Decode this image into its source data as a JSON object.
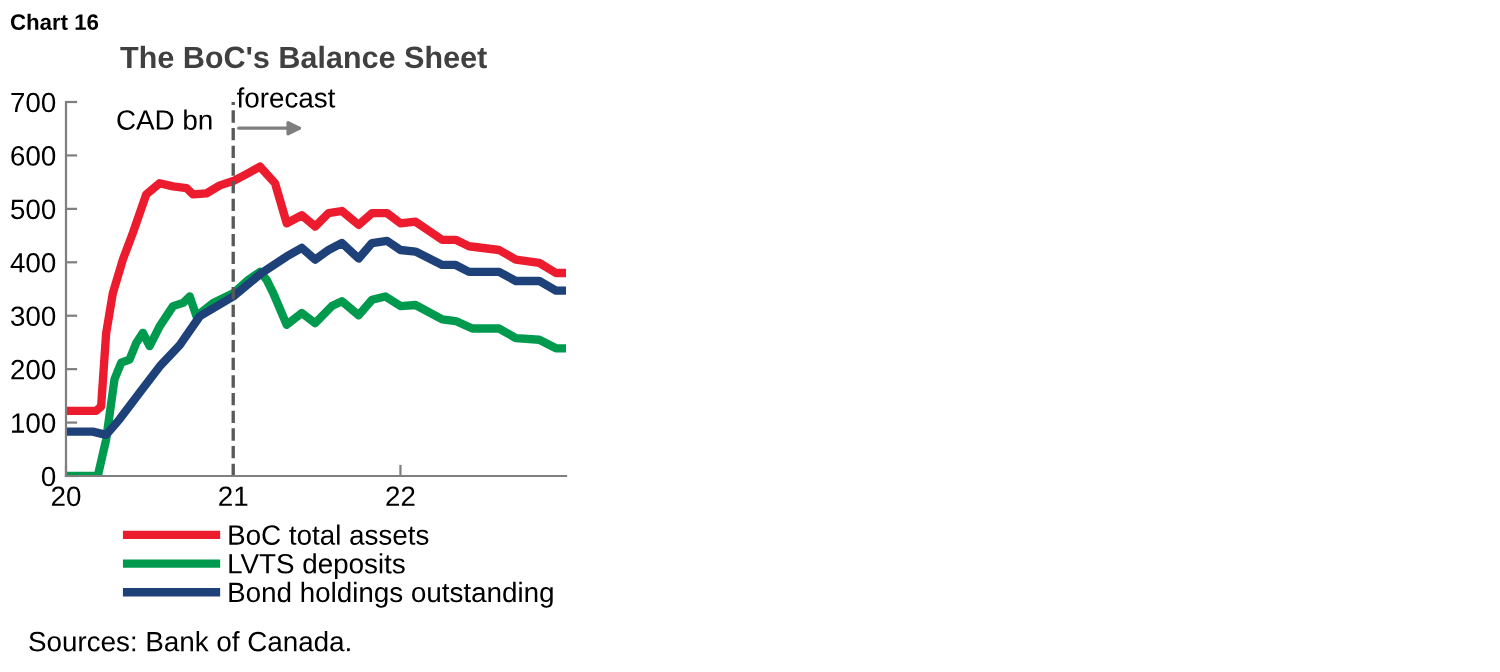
{
  "chart_data": {
    "type": "line",
    "title": "The BoC's Balance Sheet",
    "ylabel": "CAD bn",
    "annotations": [
      "Chart 16",
      "Sources: Bank of Canada."
    ],
    "xlim": [
      2020,
      2022.99
    ],
    "xticks": [
      {
        "value": 2020,
        "label": "20"
      },
      {
        "value": 2021,
        "label": "21"
      },
      {
        "value": 2022,
        "label": "22"
      }
    ],
    "ylim": [
      0,
      700
    ],
    "yticks": [
      0,
      100,
      200,
      300,
      400,
      500,
      600,
      700
    ],
    "grid": false,
    "legend": "bottom",
    "marker": "none",
    "line_style": "solid",
    "ref_lines": [
      {
        "axis": "x",
        "value": 2021,
        "label": "forecast",
        "color": "#595959",
        "line_style": "dashed"
      }
    ],
    "series": [
      {
        "name": "BoC total assets",
        "color": "#ec1c2e",
        "x": [
          2020,
          2020.18,
          2020.21,
          2020.24,
          2020.28,
          2020.34,
          2020.4,
          2020.48,
          2020.56,
          2020.64,
          2020.72,
          2020.76,
          2020.84,
          2020.92,
          2021.0,
          2021.09,
          2021.16,
          2021.25,
          2021.32,
          2021.41,
          2021.49,
          2021.57,
          2021.65,
          2021.75,
          2021.83,
          2021.92,
          2022.0,
          2022.09,
          2022.25,
          2022.33,
          2022.41,
          2022.59,
          2022.69,
          2022.83,
          2022.93,
          2022.99
        ],
        "values": [
          122,
          122,
          130,
          267,
          342,
          405,
          455,
          527,
          548,
          542,
          539,
          527,
          529,
          544,
          552,
          567,
          579,
          548,
          473,
          488,
          467,
          492,
          496,
          470,
          492,
          492,
          473,
          476,
          442,
          442,
          430,
          423,
          405,
          399,
          380,
          380
        ]
      },
      {
        "name": "LVTS deposits",
        "color": "#009a4e",
        "x": [
          2020,
          2020.19,
          2020.24,
          2020.29,
          2020.33,
          2020.38,
          2020.42,
          2020.46,
          2020.5,
          2020.56,
          2020.64,
          2020.7,
          2020.74,
          2020.78,
          2020.88,
          2021.0,
          2021.09,
          2021.16,
          2021.2,
          2021.24,
          2021.32,
          2021.41,
          2021.49,
          2021.59,
          2021.65,
          2021.75,
          2021.83,
          2021.91,
          2022.0,
          2022.09,
          2022.25,
          2022.33,
          2022.43,
          2022.59,
          2022.69,
          2022.83,
          2022.93,
          2022.99
        ],
        "values": [
          0,
          0,
          68,
          181,
          212,
          218,
          249,
          268,
          243,
          280,
          318,
          324,
          336,
          299,
          324,
          342,
          367,
          382,
          367,
          342,
          283,
          305,
          286,
          318,
          327,
          301,
          330,
          336,
          318,
          320,
          293,
          290,
          276,
          276,
          258,
          255,
          239,
          239
        ]
      },
      {
        "name": "Bond holdings outstanding",
        "color": "#1d4178",
        "x": [
          2020,
          2020.16,
          2020.24,
          2020.32,
          2020.44,
          2020.56,
          2020.68,
          2020.8,
          2021.0,
          2021.17,
          2021.32,
          2021.41,
          2021.49,
          2021.57,
          2021.65,
          2021.75,
          2021.83,
          2021.92,
          2022.0,
          2022.09,
          2022.25,
          2022.33,
          2022.41,
          2022.59,
          2022.69,
          2022.83,
          2022.93,
          2022.99
        ],
        "values": [
          83,
          83,
          77,
          106,
          156,
          205,
          245,
          299,
          336,
          380,
          411,
          427,
          405,
          423,
          436,
          407,
          436,
          440,
          423,
          420,
          395,
          395,
          382,
          382,
          365,
          365,
          347,
          347
        ]
      }
    ]
  }
}
